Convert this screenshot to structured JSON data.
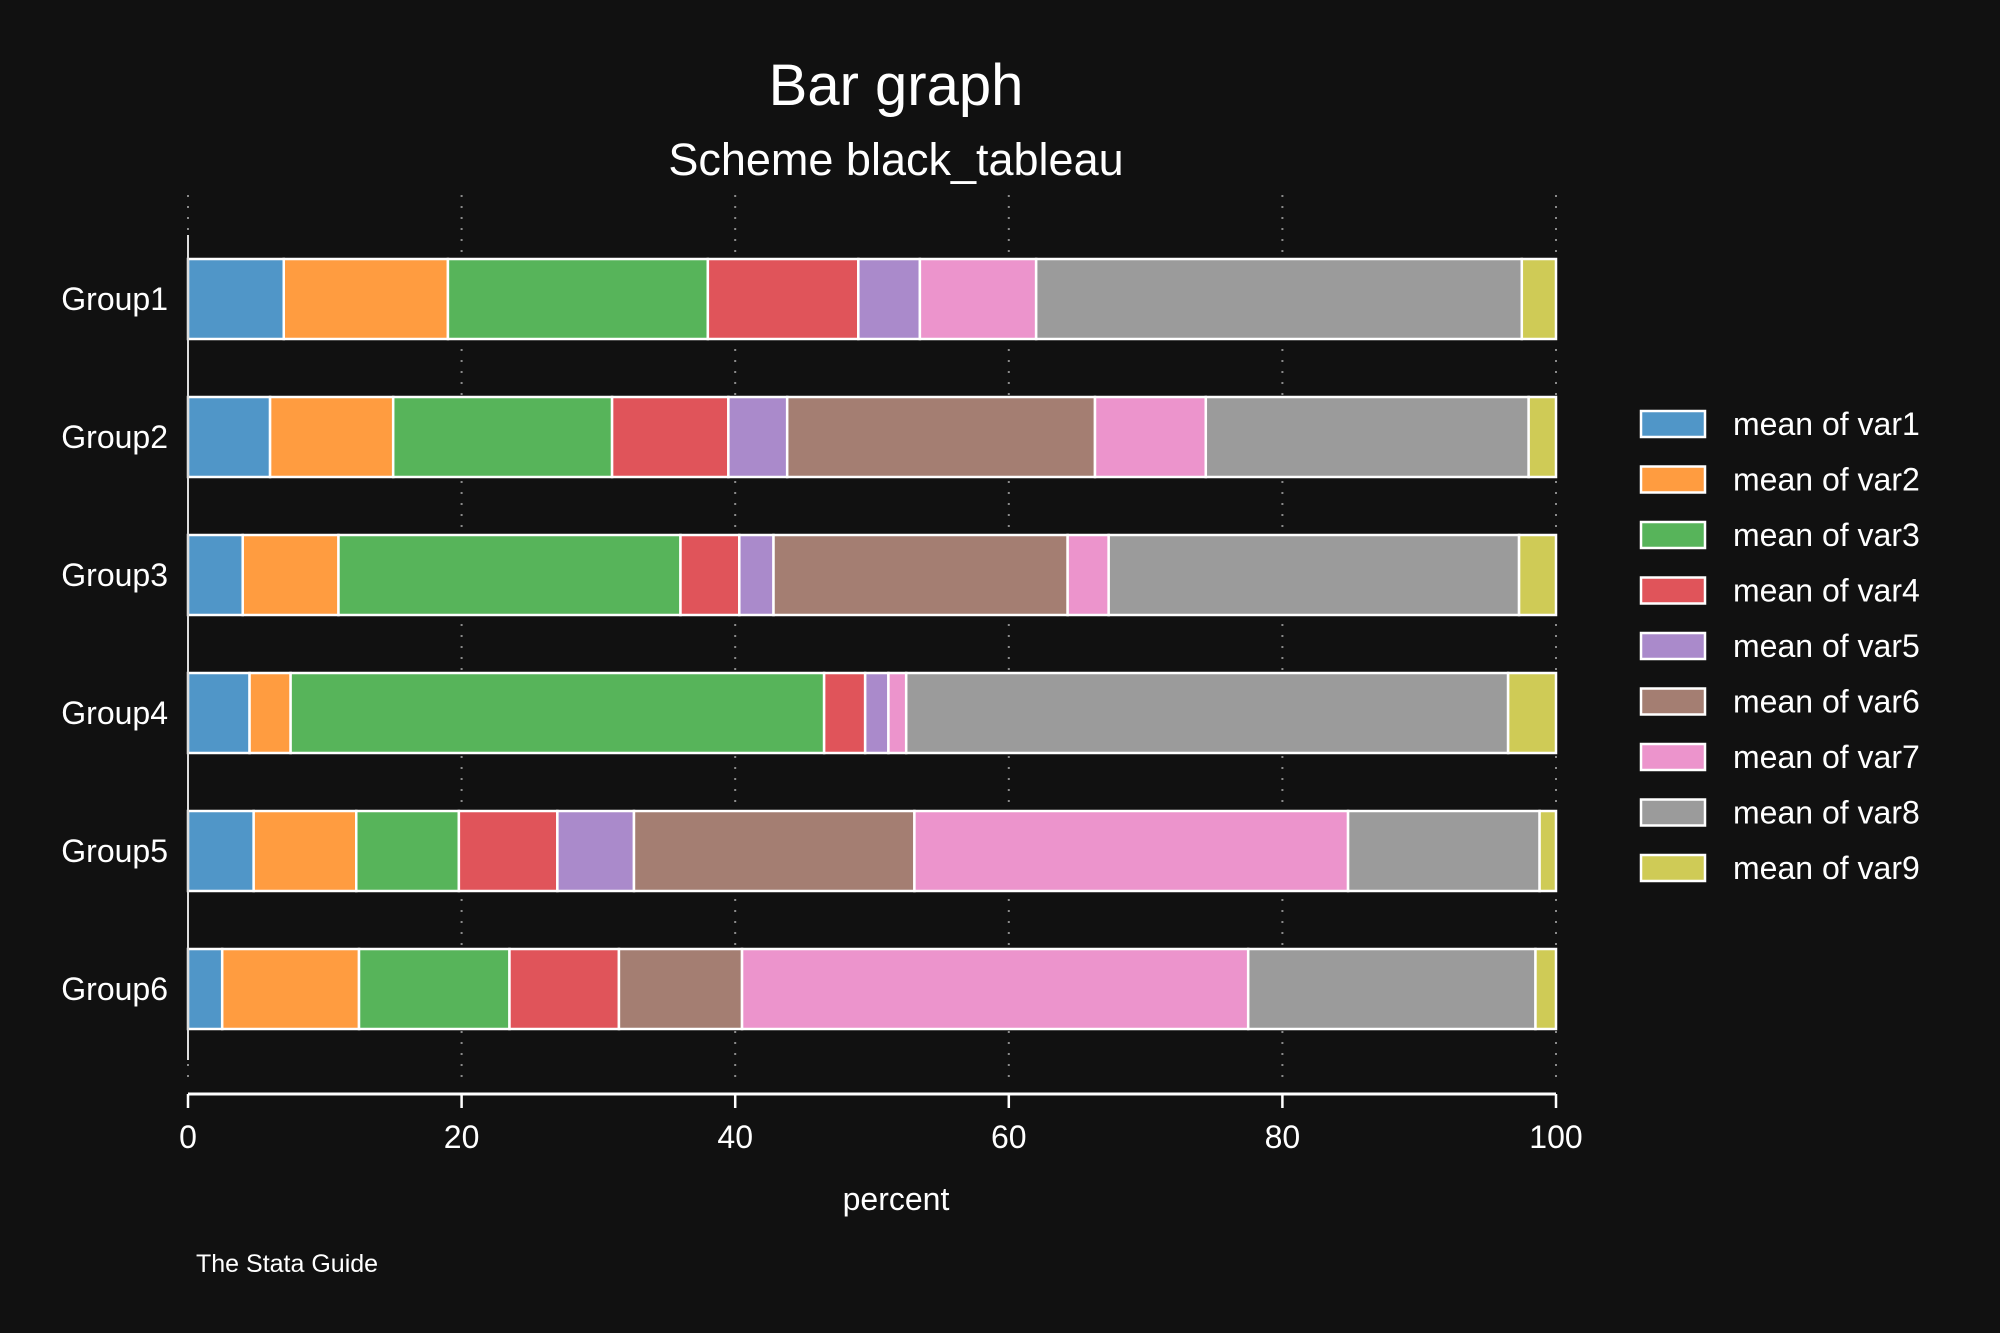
{
  "chart_data": {
    "type": "bar",
    "orientation": "horizontal",
    "stacked": true,
    "title": "Bar graph",
    "subtitle": "Scheme black_tableau",
    "xlabel": "percent",
    "xlim": [
      0,
      100
    ],
    "xticks": [
      "0",
      "20",
      "40",
      "60",
      "80",
      "100"
    ],
    "grid": "vertical-dotted",
    "legend_position": "right",
    "note": "The Stata Guide",
    "categories": [
      "Group1",
      "Group2",
      "Group3",
      "Group4",
      "Group5",
      "Group6"
    ],
    "series": [
      {
        "name": "mean of var1",
        "color": "#5096c8",
        "values": [
          7.0,
          6.0,
          4.0,
          4.5,
          4.8,
          2.5
        ]
      },
      {
        "name": "mean of var2",
        "color": "#ff9c40",
        "values": [
          12.0,
          9.0,
          7.0,
          3.0,
          7.5,
          10.0
        ]
      },
      {
        "name": "mean of var3",
        "color": "#57b45a",
        "values": [
          19.0,
          16.0,
          25.0,
          39.0,
          7.5,
          11.0
        ]
      },
      {
        "name": "mean of var4",
        "color": "#e0545a",
        "values": [
          11.0,
          8.5,
          4.3,
          3.0,
          7.2,
          8.0
        ]
      },
      {
        "name": "mean of var5",
        "color": "#aa8acb",
        "values": [
          4.5,
          4.3,
          2.5,
          1.7,
          5.6,
          0.0
        ]
      },
      {
        "name": "mean of var6",
        "color": "#a47e72",
        "values": [
          0.0,
          22.5,
          21.5,
          0.0,
          20.5,
          9.0
        ]
      },
      {
        "name": "mean of var7",
        "color": "#ec94cc",
        "values": [
          8.5,
          8.1,
          3.0,
          1.3,
          31.7,
          37.0
        ]
      },
      {
        "name": "mean of var8",
        "color": "#9b9b9b",
        "values": [
          35.5,
          23.6,
          30.0,
          44.0,
          14.0,
          21.0
        ]
      },
      {
        "name": "mean of var9",
        "color": "#cfcb56",
        "values": [
          2.5,
          2.0,
          2.7,
          3.5,
          1.2,
          1.5
        ]
      }
    ]
  }
}
